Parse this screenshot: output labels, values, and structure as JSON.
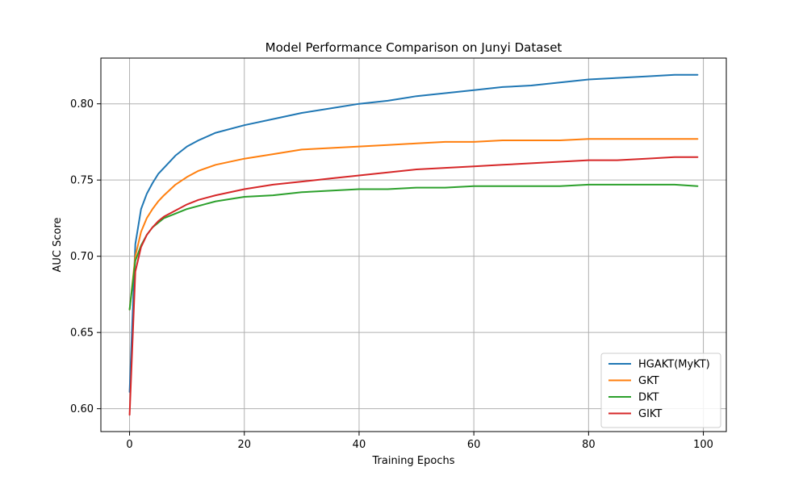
{
  "chart_data": {
    "type": "line",
    "title": "Model Performance Comparison on Junyi Dataset",
    "xlabel": "Training Epochs",
    "ylabel": "AUC Score",
    "xlim": [
      -5,
      104
    ],
    "ylim": [
      0.585,
      0.83
    ],
    "xticks": [
      0,
      20,
      40,
      60,
      80,
      100
    ],
    "xtick_labels": [
      "0",
      "20",
      "40",
      "60",
      "80",
      "100"
    ],
    "yticks": [
      0.6,
      0.65,
      0.7,
      0.75,
      0.8
    ],
    "ytick_labels": [
      "0.60",
      "0.65",
      "0.70",
      "0.75",
      "0.80"
    ],
    "grid": true,
    "legend_position": "lower-right",
    "x": [
      0,
      1,
      2,
      3,
      4,
      5,
      6,
      8,
      10,
      12,
      15,
      20,
      25,
      30,
      35,
      40,
      45,
      50,
      55,
      60,
      65,
      70,
      75,
      80,
      85,
      90,
      95,
      99
    ],
    "series": [
      {
        "name": "HGAKT(MyKT)",
        "color": "#1f77b4",
        "values": [
          0.611,
          0.708,
          0.731,
          0.741,
          0.748,
          0.754,
          0.758,
          0.766,
          0.772,
          0.776,
          0.781,
          0.786,
          0.79,
          0.794,
          0.797,
          0.8,
          0.802,
          0.805,
          0.807,
          0.809,
          0.811,
          0.812,
          0.814,
          0.816,
          0.817,
          0.818,
          0.819,
          0.819
        ]
      },
      {
        "name": "GKT",
        "color": "#ff7f0e",
        "values": [
          0.665,
          0.7,
          0.716,
          0.725,
          0.731,
          0.736,
          0.74,
          0.747,
          0.752,
          0.756,
          0.76,
          0.764,
          0.767,
          0.77,
          0.771,
          0.772,
          0.773,
          0.774,
          0.775,
          0.775,
          0.776,
          0.776,
          0.776,
          0.777,
          0.777,
          0.777,
          0.777,
          0.777
        ]
      },
      {
        "name": "DKT",
        "color": "#2ca02c",
        "values": [
          0.665,
          0.697,
          0.707,
          0.714,
          0.719,
          0.722,
          0.725,
          0.728,
          0.731,
          0.733,
          0.736,
          0.739,
          0.74,
          0.742,
          0.743,
          0.744,
          0.744,
          0.745,
          0.745,
          0.746,
          0.746,
          0.746,
          0.746,
          0.747,
          0.747,
          0.747,
          0.747,
          0.746
        ]
      },
      {
        "name": "GIKT",
        "color": "#d62728",
        "values": [
          0.596,
          0.69,
          0.706,
          0.714,
          0.719,
          0.723,
          0.726,
          0.73,
          0.734,
          0.737,
          0.74,
          0.744,
          0.747,
          0.749,
          0.751,
          0.753,
          0.755,
          0.757,
          0.758,
          0.759,
          0.76,
          0.761,
          0.762,
          0.763,
          0.763,
          0.764,
          0.765,
          0.765
        ]
      }
    ]
  }
}
